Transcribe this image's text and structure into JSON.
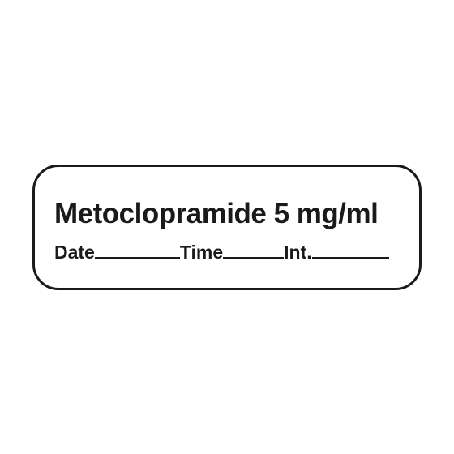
{
  "label": {
    "drug_name": "Metoclopramide 5 mg/ml",
    "fields": {
      "date_label": "Date",
      "time_label": "Time",
      "int_label": "Int."
    },
    "colors": {
      "border": "#1a1a1a",
      "text": "#1a1a1a",
      "background": "#ffffff"
    },
    "border_radius": 32,
    "border_width": 3,
    "drug_name_fontsize": 35,
    "field_label_fontsize": 23,
    "line_widths": {
      "date": 105,
      "time": 75,
      "int": 95
    }
  }
}
